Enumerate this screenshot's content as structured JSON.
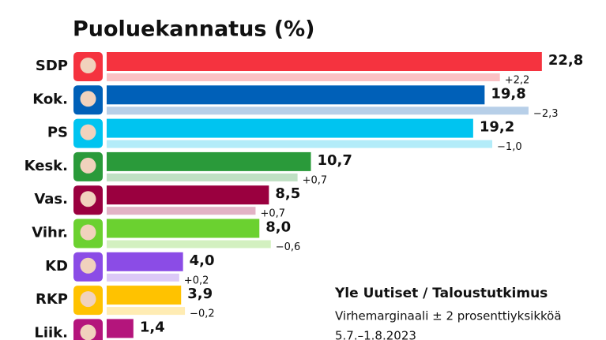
{
  "chart_data": {
    "type": "bar",
    "title": "Puoluekannatus (%)",
    "categories": [
      "SDP",
      "Kok.",
      "PS",
      "Kesk.",
      "Vas.",
      "Vihr.",
      "KD",
      "RKP",
      "Liik."
    ],
    "values": [
      22.8,
      19.8,
      19.2,
      10.7,
      8.5,
      8.0,
      4.0,
      3.9,
      1.4
    ],
    "value_labels": [
      "22,8",
      "19,8",
      "19,2",
      "10,7",
      "8,5",
      "8,0",
      "4,0",
      "3,9",
      "1,4"
    ],
    "colors": [
      "#f5333f",
      "#0060b8",
      "#00c4f0",
      "#2a9a3a",
      "#9a003f",
      "#6bd130",
      "#8b4ce6",
      "#ffc200",
      "#b4157c"
    ],
    "previous_values": [
      20.6,
      22.1,
      20.2,
      10.0,
      7.8,
      8.6,
      3.8,
      4.1,
      null
    ],
    "previous_colors": [
      "#fbc1c4",
      "#b7cfe8",
      "#b3ecf9",
      "#bfe0c3",
      "#e2b3c6",
      "#d3f0c0",
      "#dcc9f7",
      "#ffecb3",
      "#e8b8d7"
    ],
    "changes": [
      2.2,
      -2.3,
      -1.0,
      0.7,
      0.7,
      -0.6,
      0.2,
      -0.2,
      null
    ],
    "change_labels": [
      "+2,2",
      "−2,3",
      "−1,0",
      "+0,7",
      "+0,7",
      "−0,6",
      "+0,2",
      "−0,2",
      null
    ],
    "xlim": [
      0,
      25
    ],
    "source": "Yle Uutiset / Taloustutkimus",
    "margin_note": "Virhemarginaali ± 2 prosenttiyksikköä",
    "period": "5.7.–1.8.2023"
  }
}
